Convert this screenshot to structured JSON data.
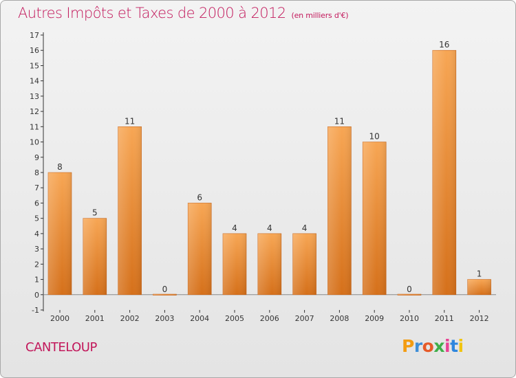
{
  "header": {
    "title": "Autres Impôts et Taxes de 2000 à 2012",
    "subtitle": "(en milliers d'€)"
  },
  "footer": {
    "commune": "CANTELOUP",
    "logo_text": "Proxiti"
  },
  "colors": {
    "title": "#c2185b",
    "bar_top": "#f7a654",
    "bar_bottom": "#d5701a",
    "axis": "#333333",
    "grid": "#cfcfcf",
    "logo_letters": [
      "#f39c12",
      "#3f8fd8",
      "#e65a28",
      "#3fae49",
      "#e84393",
      "#2e86de",
      "#f1c40f"
    ]
  },
  "chart_data": {
    "type": "bar",
    "title": "Autres Impôts et Taxes de 2000 à 2012",
    "subtitle": "(en milliers d'€)",
    "xlabel": "",
    "ylabel": "",
    "categories": [
      "2000",
      "2001",
      "2002",
      "2003",
      "2004",
      "2005",
      "2006",
      "2007",
      "2008",
      "2009",
      "2010",
      "2011",
      "2012"
    ],
    "values": [
      8,
      5,
      11,
      0,
      6,
      4,
      4,
      4,
      11,
      10,
      0,
      16,
      1
    ],
    "data_labels": [
      "8",
      "5",
      "11",
      "0",
      "6",
      "4",
      "4",
      "4",
      "11",
      "10",
      "0",
      "16",
      "1"
    ],
    "ylim": [
      -1,
      17
    ],
    "yticks": [
      -1,
      0,
      1,
      2,
      3,
      4,
      5,
      6,
      7,
      8,
      9,
      10,
      11,
      12,
      13,
      14,
      15,
      16,
      17
    ],
    "grid": false,
    "legend": "none"
  }
}
